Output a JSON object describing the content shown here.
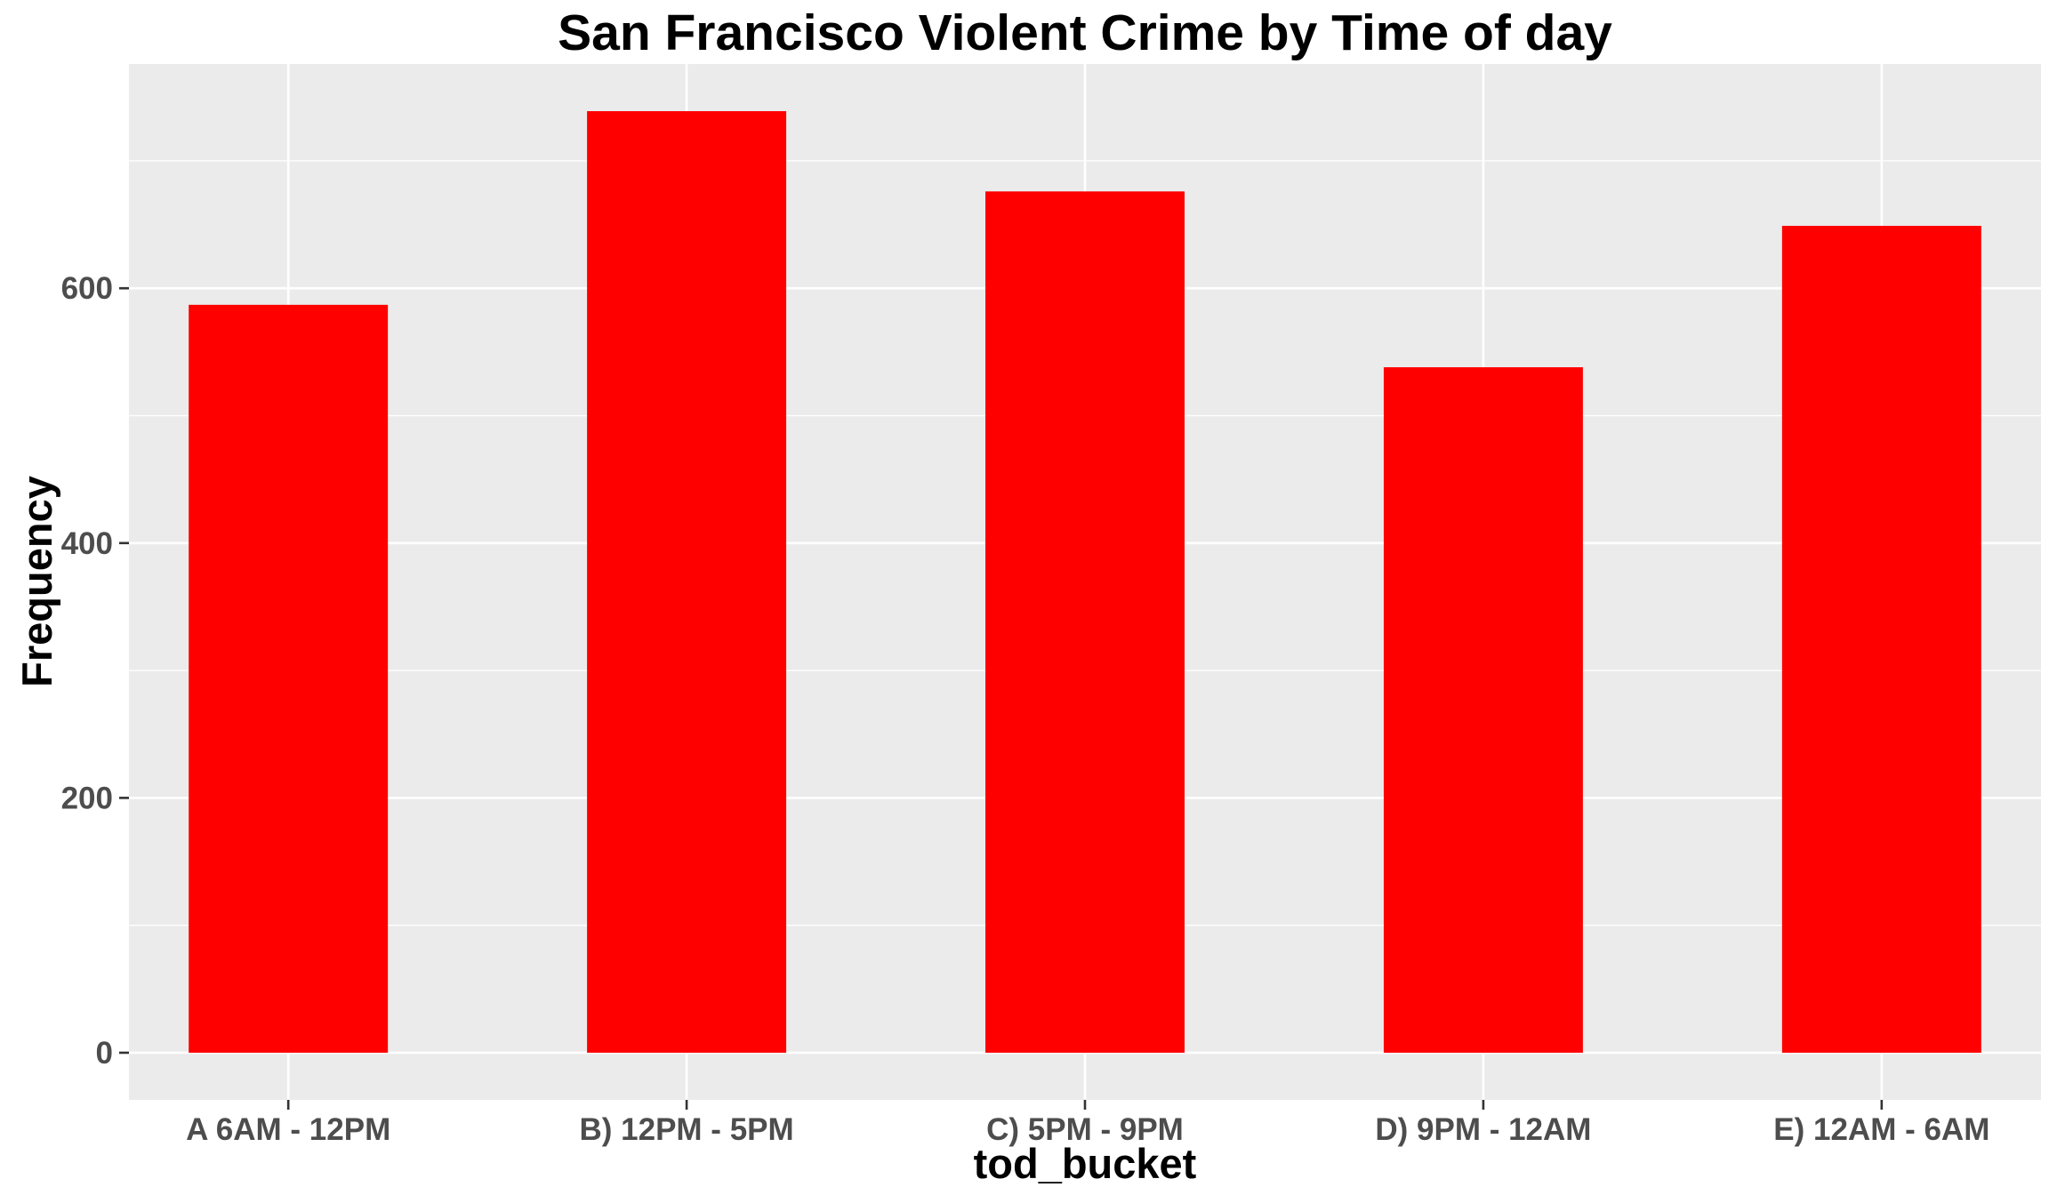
{
  "chart_data": {
    "type": "bar",
    "title": "San Francisco Violent Crime by Time of day",
    "xlabel": "tod_bucket",
    "ylabel": "Frequency",
    "categories": [
      "A 6AM - 12PM",
      "B) 12PM - 5PM",
      "C) 5PM - 9PM",
      "D) 9PM - 12AM",
      "E) 12AM - 6AM"
    ],
    "values": [
      587,
      739,
      676,
      538,
      649
    ],
    "yticks": [
      "0",
      "200",
      "400",
      "600"
    ],
    "ylim": [
      -37,
      776
    ],
    "grid": true,
    "bar_color": "#ff0000",
    "panel_background": "#ebebeb",
    "grid_color": "#ffffff"
  }
}
